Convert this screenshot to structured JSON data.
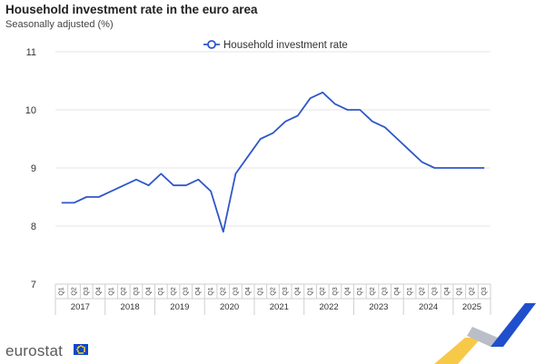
{
  "header": {
    "title": "Household investment rate in the euro area",
    "subtitle": "Seasonally adjusted (%)"
  },
  "brand": {
    "name": "eurostat"
  },
  "colors": {
    "series": "#2f57c7",
    "grid": "#e6e6e6",
    "logo_blue": "#0e47cb",
    "logo_yellow": "#ffd617"
  },
  "chart_data": {
    "type": "line",
    "ylim": [
      7,
      11
    ],
    "yticks": [
      7,
      8,
      9,
      10,
      11
    ],
    "legend_position": "top-center",
    "grid": true,
    "x": [
      "Q1",
      "Q2",
      "Q3",
      "Q4",
      "Q1",
      "Q2",
      "Q3",
      "Q4",
      "Q1",
      "Q2",
      "Q3",
      "Q4",
      "Q1",
      "Q2",
      "Q3",
      "Q4",
      "Q1",
      "Q2",
      "Q3",
      "Q4",
      "Q1",
      "Q2",
      "Q3",
      "Q4",
      "Q1",
      "Q2",
      "Q3",
      "Q4",
      "Q1",
      "Q2",
      "Q3",
      "Q4",
      "Q1",
      "Q2",
      "Q3"
    ],
    "years": [
      {
        "label": "2017",
        "quarters": 4
      },
      {
        "label": "2018",
        "quarters": 4
      },
      {
        "label": "2019",
        "quarters": 4
      },
      {
        "label": "2020",
        "quarters": 4
      },
      {
        "label": "2021",
        "quarters": 4
      },
      {
        "label": "2022",
        "quarters": 4
      },
      {
        "label": "2023",
        "quarters": 4
      },
      {
        "label": "2024",
        "quarters": 4
      },
      {
        "label": "2025",
        "quarters": 3
      }
    ],
    "series": [
      {
        "name": "Household investment rate",
        "values": [
          8.4,
          8.4,
          8.5,
          8.5,
          8.6,
          8.7,
          8.8,
          8.7,
          8.9,
          8.7,
          8.7,
          8.8,
          8.6,
          7.9,
          8.9,
          9.2,
          9.5,
          9.6,
          9.8,
          9.9,
          10.2,
          10.3,
          10.1,
          10.0,
          10.0,
          9.8,
          9.7,
          9.5,
          9.3,
          9.1,
          9.0,
          9.0,
          9.0,
          9.0,
          9.0
        ]
      }
    ]
  }
}
